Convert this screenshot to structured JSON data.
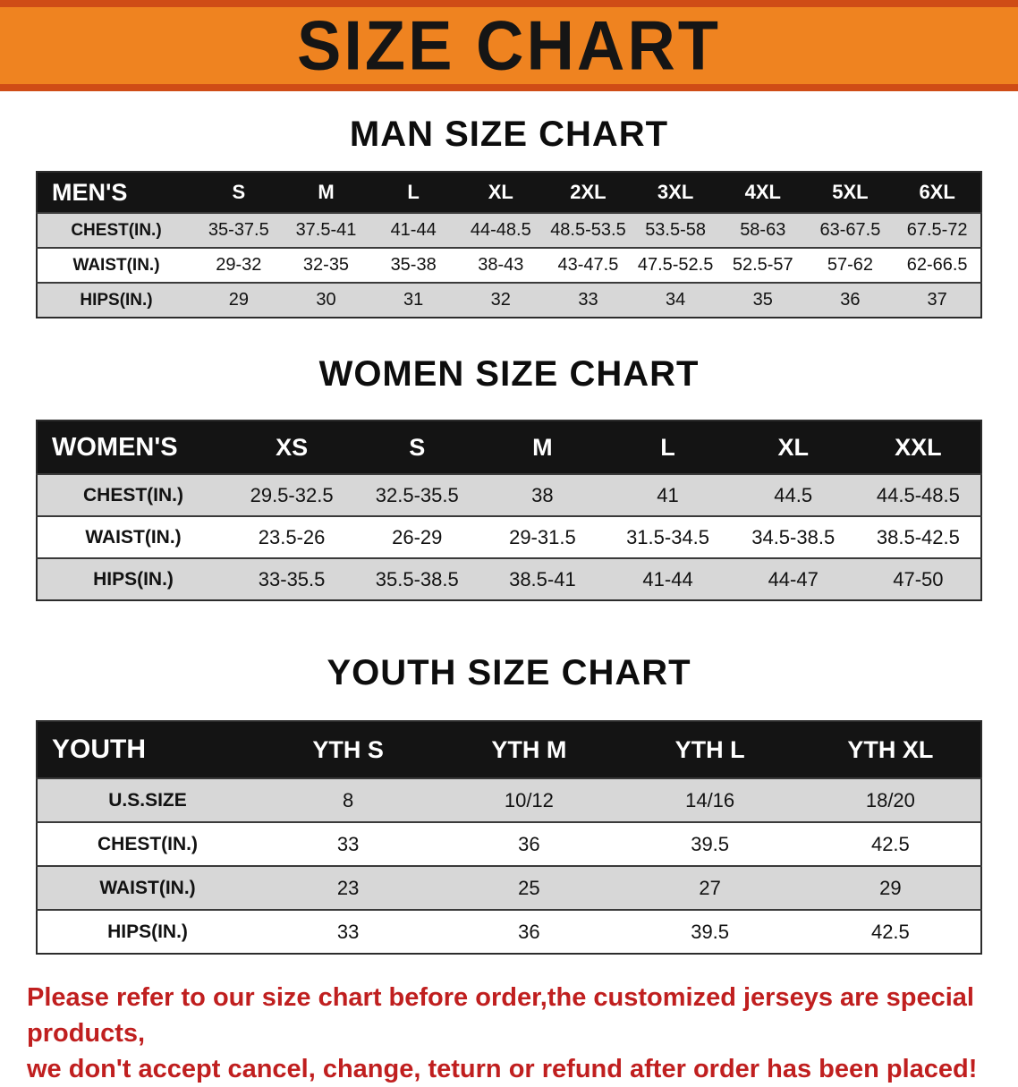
{
  "banner": {
    "title": "SIZE CHART",
    "background_color": "#ef8320",
    "edge_color": "#cf4c16",
    "text_color": "#151515"
  },
  "sections": {
    "men": {
      "heading": "MAN SIZE CHART",
      "table": {
        "header": [
          "MEN'S",
          "S",
          "M",
          "L",
          "XL",
          "2XL",
          "3XL",
          "4XL",
          "5XL",
          "6XL"
        ],
        "rows": [
          [
            "CHEST(IN.)",
            "35-37.5",
            "37.5-41",
            "41-44",
            "44-48.5",
            "48.5-53.5",
            "53.5-58",
            "58-63",
            "63-67.5",
            "67.5-72"
          ],
          [
            "WAIST(IN.)",
            "29-32",
            "32-35",
            "35-38",
            "38-43",
            "43-47.5",
            "47.5-52.5",
            "52.5-57",
            "57-62",
            "62-66.5"
          ],
          [
            "HIPS(IN.)",
            "29",
            "30",
            "31",
            "32",
            "33",
            "34",
            "35",
            "36",
            "37"
          ]
        ]
      }
    },
    "women": {
      "heading": "WOMEN SIZE CHART",
      "table": {
        "header": [
          "WOMEN'S",
          "XS",
          "S",
          "M",
          "L",
          "XL",
          "XXL"
        ],
        "rows": [
          [
            "CHEST(IN.)",
            "29.5-32.5",
            "32.5-35.5",
            "38",
            "41",
            "44.5",
            "44.5-48.5"
          ],
          [
            "WAIST(IN.)",
            "23.5-26",
            "26-29",
            "29-31.5",
            "31.5-34.5",
            "34.5-38.5",
            "38.5-42.5"
          ],
          [
            "HIPS(IN.)",
            "33-35.5",
            "35.5-38.5",
            "38.5-41",
            "41-44",
            "44-47",
            "47-50"
          ]
        ]
      }
    },
    "youth": {
      "heading": "YOUTH SIZE CHART",
      "table": {
        "header": [
          "YOUTH",
          "YTH S",
          "YTH M",
          "YTH L",
          "YTH XL"
        ],
        "rows": [
          [
            "U.S.SIZE",
            "8",
            "10/12",
            "14/16",
            "18/20"
          ],
          [
            "CHEST(IN.)",
            "33",
            "36",
            "39.5",
            "42.5"
          ],
          [
            "WAIST(IN.)",
            "23",
            "25",
            "27",
            "29"
          ],
          [
            "HIPS(IN.)",
            "33",
            "36",
            "39.5",
            "42.5"
          ]
        ]
      }
    }
  },
  "notice": {
    "line1": "Please refer to our size chart before order,the customized jerseys are special products,",
    "line2": "we don't accept cancel, change, teturn or refund after order has been placed!",
    "text_color": "#c01f1f"
  }
}
